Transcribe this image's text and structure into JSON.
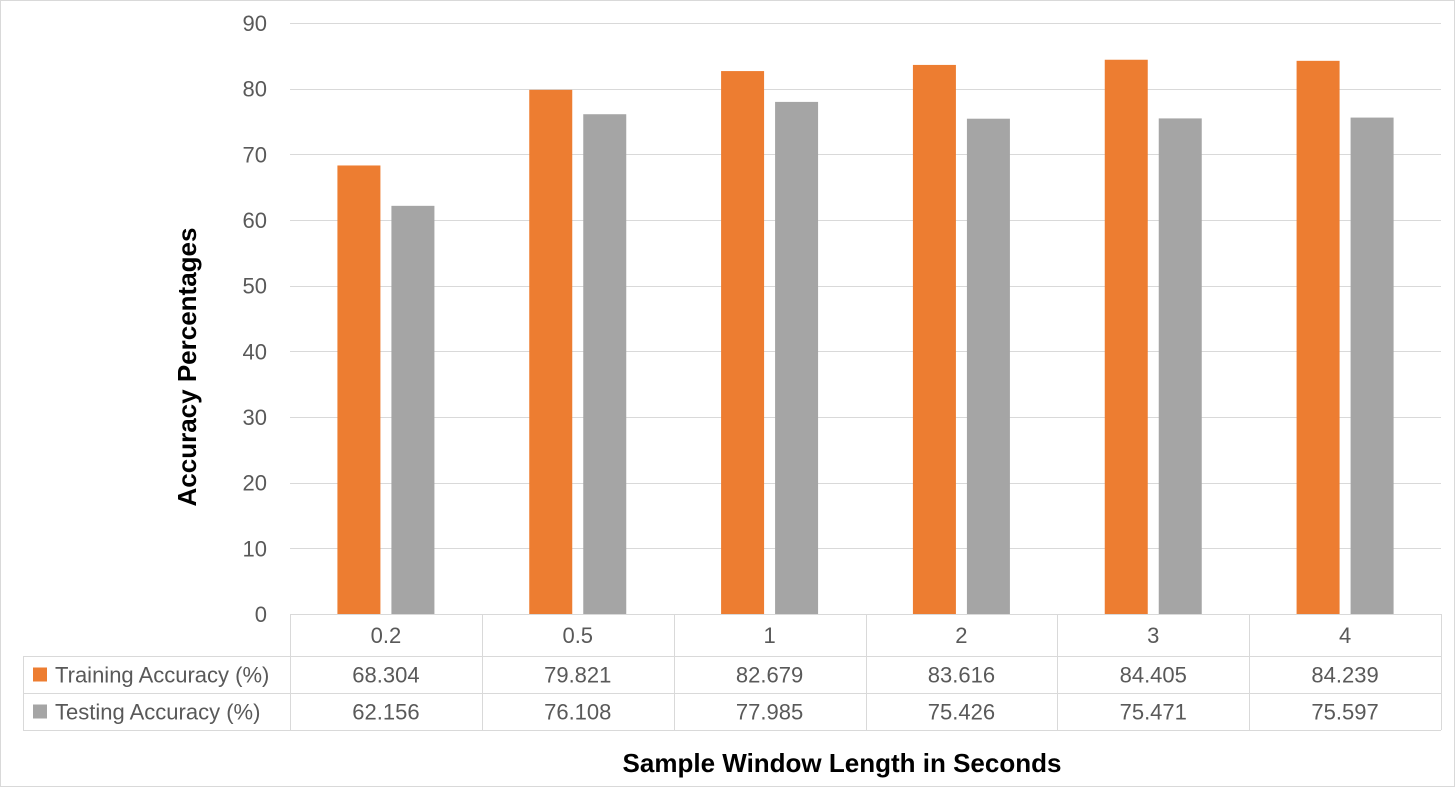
{
  "chart_data": {
    "type": "bar",
    "categories": [
      "0.2",
      "0.5",
      "1",
      "2",
      "3",
      "4"
    ],
    "series": [
      {
        "name": "Training Accuracy (%)",
        "values": [
          68.304,
          79.821,
          82.679,
          83.616,
          84.405,
          84.239
        ],
        "value_labels": [
          "68.304",
          "79.821",
          "82.679",
          "83.616",
          "84.405",
          "84.239"
        ],
        "color": "#ED7D31"
      },
      {
        "name": "Testing Accuracy (%)",
        "values": [
          62.156,
          76.108,
          77.985,
          75.426,
          75.471,
          75.597
        ],
        "value_labels": [
          "62.156",
          "76.108",
          "77.985",
          "75.426",
          "75.471",
          "75.597"
        ],
        "color": "#A5A5A5"
      }
    ],
    "xlabel": "Sample Window Length in Seconds",
    "ylabel": "Accuracy Percentages",
    "ylim": [
      0,
      90
    ],
    "yticks": [
      0,
      10,
      20,
      30,
      40,
      50,
      60,
      70,
      80,
      90
    ],
    "grid": true,
    "legend": "data-table",
    "colors": {
      "gridline": "#D9D9D9",
      "tick_text": "#595959",
      "title_text": "#000000"
    }
  }
}
